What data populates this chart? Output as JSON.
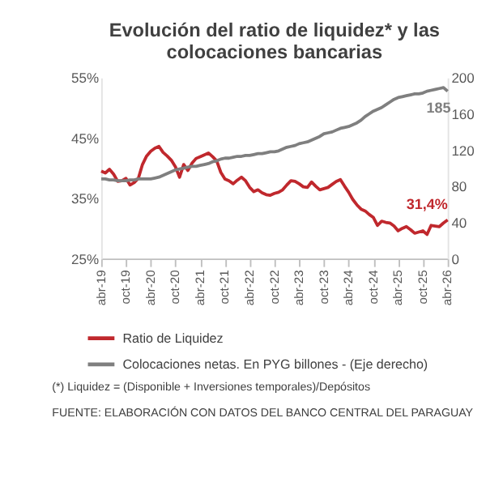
{
  "chart_data": {
    "type": "line",
    "title": "Evolución del ratio de liquidez* y las colocaciones bancarias",
    "categories": [
      "abr-19",
      null,
      null,
      null,
      null,
      null,
      "oct-19",
      null,
      null,
      null,
      null,
      null,
      "abr-20",
      null,
      null,
      null,
      null,
      null,
      "oct-20",
      null,
      null,
      null,
      null,
      null,
      "abr-21",
      null,
      null,
      null,
      null,
      null,
      "oct-21",
      null,
      null,
      null,
      null,
      null,
      "abr-22",
      null,
      null,
      null,
      null,
      null,
      "oct-22",
      null,
      null,
      null,
      null,
      null,
      "abr-23",
      null,
      null,
      null,
      null,
      null,
      "oct-23",
      null,
      null,
      null,
      null,
      null,
      "abr-24",
      null,
      null,
      null,
      null,
      null,
      "oct-24",
      null,
      null,
      null,
      null,
      null,
      "abr-25",
      null,
      null,
      null,
      null,
      null,
      "oct-25",
      null,
      null,
      null,
      null,
      null,
      "abr-26"
    ],
    "series": [
      {
        "name": "Ratio de Liquidez",
        "color": "#c0282d",
        "values": [
          39.5,
          39.2,
          39.8,
          39.0,
          37.8,
          37.9,
          38.3,
          37.2,
          37.6,
          38.3,
          40.6,
          42.0,
          42.8,
          43.3,
          43.6,
          42.6,
          42.0,
          41.3,
          40.2,
          38.5,
          40.6,
          39.6,
          40.8,
          41.6,
          41.9,
          42.2,
          42.5,
          41.9,
          41.2,
          39.3,
          38.2,
          37.9,
          37.4,
          38.0,
          38.5,
          37.9,
          36.8,
          36.1,
          36.4,
          35.9,
          35.6,
          35.5,
          35.8,
          36.0,
          36.4,
          37.2,
          37.9,
          37.8,
          37.4,
          36.9,
          36.8,
          37.7,
          37.0,
          36.4,
          36.6,
          36.8,
          37.3,
          37.8,
          38.1,
          37.0,
          36.0,
          34.8,
          33.9,
          33.2,
          32.9,
          32.3,
          31.8,
          30.5,
          31.2,
          31.0,
          30.9,
          30.4,
          29.6,
          30.0,
          30.3,
          29.8,
          29.2,
          29.4,
          29.6,
          29.0,
          30.5,
          30.4,
          30.3,
          30.9,
          31.4
        ],
        "value_labels": [
          null,
          null,
          null,
          null,
          null,
          null,
          null,
          null,
          null,
          null,
          null,
          null,
          null,
          null,
          null,
          null,
          null,
          null,
          null,
          null,
          null,
          null,
          null,
          null,
          null,
          null,
          null,
          null,
          null,
          null,
          null,
          null,
          null,
          null,
          null,
          null,
          null,
          null,
          null,
          null,
          null,
          null,
          null,
          null,
          null,
          null,
          null,
          null,
          null,
          null,
          null,
          null,
          null,
          null,
          null,
          null,
          null,
          null,
          null,
          null,
          null,
          null,
          null,
          null,
          null,
          null,
          null,
          null,
          null,
          null,
          null,
          null,
          null,
          null,
          null,
          null,
          null,
          null,
          null,
          null,
          null,
          null,
          null,
          null,
          "31,4%"
        ]
      },
      {
        "name": "Colocaciones netas. En PYG billones - (Eje derecho)",
        "color": "#7f7f7f",
        "axis": "y2",
        "values": [
          88,
          88,
          87,
          87,
          86,
          86,
          86,
          87,
          87,
          88,
          88,
          88,
          88,
          89,
          90,
          92,
          94,
          96,
          98,
          99,
          100,
          101,
          102,
          102,
          103,
          104,
          105,
          107,
          108,
          110,
          111,
          111,
          112,
          113,
          113,
          114,
          114,
          115,
          116,
          116,
          117,
          118,
          118,
          119,
          121,
          123,
          124,
          125,
          127,
          128,
          129,
          131,
          133,
          135,
          138,
          139,
          140,
          142,
          144,
          145,
          146,
          148,
          150,
          153,
          157,
          160,
          163,
          165,
          167,
          170,
          173,
          176,
          178,
          179,
          180,
          181,
          182,
          182,
          183,
          185,
          186,
          187,
          188,
          189,
          185
        ],
        "value_labels": [
          null,
          null,
          null,
          null,
          null,
          null,
          null,
          null,
          null,
          null,
          null,
          null,
          null,
          null,
          null,
          null,
          null,
          null,
          null,
          null,
          null,
          null,
          null,
          null,
          null,
          null,
          null,
          null,
          null,
          null,
          null,
          null,
          null,
          null,
          null,
          null,
          null,
          null,
          null,
          null,
          null,
          null,
          null,
          null,
          null,
          null,
          null,
          null,
          null,
          null,
          null,
          null,
          null,
          null,
          null,
          null,
          null,
          null,
          null,
          null,
          null,
          null,
          null,
          null,
          null,
          null,
          null,
          null,
          null,
          null,
          null,
          null,
          null,
          null,
          null,
          null,
          null,
          null,
          null,
          null,
          null,
          null,
          null,
          null,
          "185"
        ]
      }
    ],
    "ylim": [
      25,
      55
    ],
    "yticks": [
      {
        "value": 25,
        "label": "25%"
      },
      {
        "value": 35,
        "label": "35%"
      },
      {
        "value": 45,
        "label": "45%"
      },
      {
        "value": 55,
        "label": "55%"
      }
    ],
    "y2lim": [
      0,
      200
    ],
    "y2ticks": [
      0,
      40,
      80,
      120,
      160,
      200
    ],
    "legend": "bottom",
    "annotations": [
      "(*) Liquidez = (Disponible + Inversiones temporales)/Depósitos",
      "FUENTE: ELABORACIÓN CON DATOS DEL BANCO CENTRAL DEL PARAGUAY"
    ]
  }
}
